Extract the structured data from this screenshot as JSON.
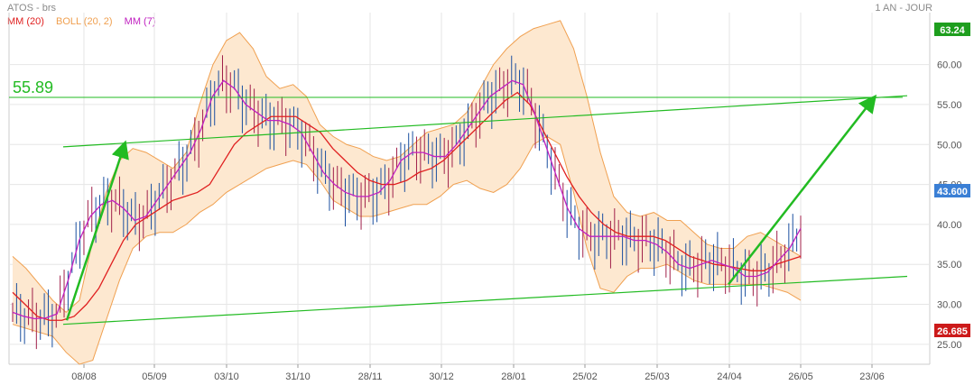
{
  "header": {
    "title": "ATOS - brs",
    "period": "1 AN - JOUR"
  },
  "legend": [
    {
      "label": "MM (20)",
      "color": "#e02020"
    },
    {
      "label": "BOLL (20, 2)",
      "color": "#f0a050"
    },
    {
      "label": "MM (7)",
      "color": "#c020c0"
    }
  ],
  "colors": {
    "price": "#1a4fa0",
    "band_fill": "#fde8d0",
    "trend": "#22bb22",
    "grid": "#e6e6e6"
  },
  "chart_data": {
    "type": "line",
    "title": "ATOS - brs",
    "x_ticks": [
      "08/08",
      "05/09",
      "03/10",
      "31/10",
      "28/11",
      "30/12",
      "28/01",
      "25/02",
      "25/03",
      "24/04",
      "26/05",
      "23/06"
    ],
    "y_ticks": [
      25.0,
      30.0,
      35.0,
      40.0,
      45.0,
      50.0,
      55.0,
      60.0
    ],
    "ylim": [
      22.5,
      66.5
    ],
    "grid": true,
    "price_badges": [
      {
        "value": "63.24",
        "color": "#1e9e1e"
      },
      {
        "value": "43.600",
        "color": "#3a7fd5"
      },
      {
        "value": "26.685",
        "color": "#cc1a1a"
      }
    ],
    "horizontal_level": {
      "label": "55.89",
      "value": 55.89
    },
    "series": [
      {
        "name": "MM (7)",
        "values": [
          29,
          28.5,
          28.2,
          28.3,
          28.8,
          33,
          38,
          41,
          42.5,
          43,
          42,
          40.5,
          41,
          43,
          45,
          47,
          49,
          52,
          56,
          58,
          57,
          55,
          54,
          53,
          53,
          52.5,
          51.5,
          49,
          46.5,
          45,
          44,
          43.5,
          43.5,
          44,
          45.5,
          48,
          49,
          49,
          48.5,
          48.5,
          50,
          52,
          54,
          56,
          57,
          58,
          57.5,
          54,
          50,
          46,
          42,
          39.5,
          38.5,
          38.5,
          38.5,
          38.5,
          38,
          38,
          37.5,
          36.5,
          35,
          34.5,
          35,
          35.5,
          35,
          34.5,
          33.5,
          33.5,
          34,
          35.5,
          37,
          39.5
        ]
      },
      {
        "name": "MM (20)",
        "values": [
          31.5,
          30,
          28.5,
          28,
          28,
          28.5,
          30,
          32,
          35,
          38,
          40,
          41,
          42,
          43,
          43.5,
          44,
          45,
          47.5,
          50,
          51.5,
          52.5,
          53.5,
          53.5,
          53.5,
          52.5,
          51.5,
          49.5,
          48,
          46.5,
          45.5,
          45,
          45,
          45.5,
          46.5,
          47,
          48,
          49.5,
          51,
          52.5,
          54,
          55.5,
          56.5,
          55,
          52,
          49,
          46,
          43.5,
          41.5,
          40,
          39,
          38.5,
          38.5,
          38.5,
          38,
          37,
          36,
          35.5,
          35,
          34.8,
          34.5,
          34.2,
          34.2,
          35,
          35.5,
          36
        ]
      },
      {
        "name": "BOLL (20, 2) upper",
        "values": [
          36,
          34.5,
          32.5,
          30.5,
          29,
          30.5,
          38,
          44,
          48,
          49.5,
          49,
          48,
          47,
          49,
          55,
          60,
          63,
          64,
          62,
          58.5,
          57,
          57.5,
          56,
          52.5,
          51,
          50,
          49.5,
          48.5,
          48,
          48.5,
          50,
          51.5,
          52,
          52.5,
          54,
          57,
          60,
          62,
          63.5,
          64.5,
          65,
          65.5,
          62,
          56,
          49,
          43.5,
          41.5,
          41,
          41.5,
          40.5,
          40.5,
          39,
          37.5,
          37,
          37,
          38.5,
          39,
          38,
          37,
          36
        ]
      },
      {
        "name": "BOLL (20, 2) lower",
        "values": [
          27.5,
          27,
          26.5,
          26,
          24,
          22.5,
          23,
          28,
          33,
          37,
          38.5,
          39,
          39,
          40,
          41.5,
          42.5,
          44,
          45,
          46,
          47,
          47.5,
          48,
          47.5,
          45.5,
          43,
          42,
          41,
          41,
          41.5,
          42,
          42.5,
          42.5,
          43.5,
          45,
          45.5,
          44.5,
          44,
          45,
          47,
          50,
          51,
          50,
          44,
          37,
          32,
          31.5,
          33.5,
          34.5,
          34.5,
          35,
          34,
          33,
          32.5,
          32.5,
          32.5,
          32.5,
          32.5,
          32,
          31.5,
          30.5
        ]
      }
    ]
  }
}
